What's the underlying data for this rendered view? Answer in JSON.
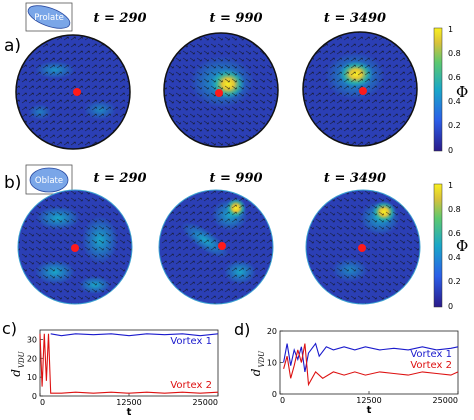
{
  "panel_a": {
    "letter": "a)",
    "shape_label": "Prolate",
    "times": [
      "t = 290",
      "t = 990",
      "t = 3490"
    ],
    "colorbar_label": "Φ",
    "colorbar_ticks": [
      "1",
      "0.8",
      "0.6",
      "0.4",
      "0.2",
      "0"
    ]
  },
  "panel_b": {
    "letter": "b)",
    "shape_label": "Oblate",
    "times": [
      "t = 290",
      "t = 990",
      "t = 3490"
    ],
    "colorbar_label": "Φ",
    "colorbar_ticks": [
      "1",
      "0.8",
      "0.6",
      "0.4",
      "0.2",
      "0"
    ]
  },
  "colors": {
    "colormap_low": "#2a1a8a",
    "colormap_mid": "#1aa7c8",
    "colormap_high": "#f9f020",
    "arrow": "#111111",
    "center_dot": "#ff1a1a",
    "vortex1": "#1a1acc",
    "vortex2": "#dd1111"
  },
  "chart_data": [
    {
      "type": "line",
      "panel_letter": "c)",
      "xlabel": "t",
      "ylabel": "d_VDU",
      "ylabel_main": "d",
      "ylabel_sub": "VDU",
      "xlim": [
        0,
        25000
      ],
      "ylim": [
        0,
        35
      ],
      "xticks": [
        "0",
        "12500",
        "25000"
      ],
      "yticks": [
        "0",
        "10",
        "20",
        "30"
      ],
      "series": [
        {
          "name": "Vortex 1",
          "color": "#1a1acc",
          "x": [
            1500,
            3000,
            5000,
            7500,
            10000,
            12500,
            15000,
            17500,
            20000,
            22500,
            25000
          ],
          "y": [
            33,
            32,
            33,
            32.5,
            33,
            32,
            33,
            32.5,
            33,
            32,
            33
          ]
        },
        {
          "name": "Vortex 2",
          "color": "#dd1111",
          "x": [
            0,
            300,
            600,
            900,
            1200,
            1500,
            3000,
            5000,
            7500,
            10000,
            12500,
            15000,
            17500,
            20000,
            22500,
            25000
          ],
          "y": [
            33,
            5,
            33,
            8,
            33,
            1.5,
            1.5,
            2,
            1.5,
            2,
            1.5,
            2,
            1.5,
            2,
            1.5,
            2
          ]
        }
      ]
    },
    {
      "type": "line",
      "panel_letter": "d)",
      "xlabel": "t",
      "ylabel": "d_VDU",
      "ylabel_main": "d",
      "ylabel_sub": "VDU",
      "xlim": [
        0,
        25000
      ],
      "ylim": [
        0,
        20
      ],
      "xticks": [
        "0",
        "12500",
        "25000"
      ],
      "yticks": [
        "0",
        "10",
        "20"
      ],
      "series": [
        {
          "name": "Vortex 1",
          "color": "#1a1acc",
          "x": [
            500,
            1000,
            1500,
            2000,
            2500,
            3000,
            3500,
            4000,
            5000,
            5500,
            6500,
            7500,
            9000,
            10500,
            12000,
            14000,
            16000,
            18000,
            20000,
            22000,
            24000,
            25000
          ],
          "y": [
            10,
            16,
            9,
            14,
            11,
            15,
            7,
            13,
            16,
            12,
            15,
            14,
            15,
            14,
            15,
            14,
            14.5,
            14,
            15,
            14,
            14.5,
            15
          ]
        },
        {
          "name": "Vortex 2",
          "color": "#dd1111",
          "x": [
            500,
            1000,
            1500,
            2000,
            2500,
            3000,
            3500,
            4000,
            5000,
            6000,
            7500,
            9000,
            10500,
            12000,
            14000,
            16000,
            18000,
            20000,
            22000,
            24000,
            25000
          ],
          "y": [
            8,
            12,
            5,
            9,
            14,
            10,
            16,
            3,
            7,
            5,
            7,
            6,
            7,
            6,
            7,
            6.5,
            6,
            7,
            6.5,
            6,
            7
          ]
        }
      ]
    }
  ]
}
